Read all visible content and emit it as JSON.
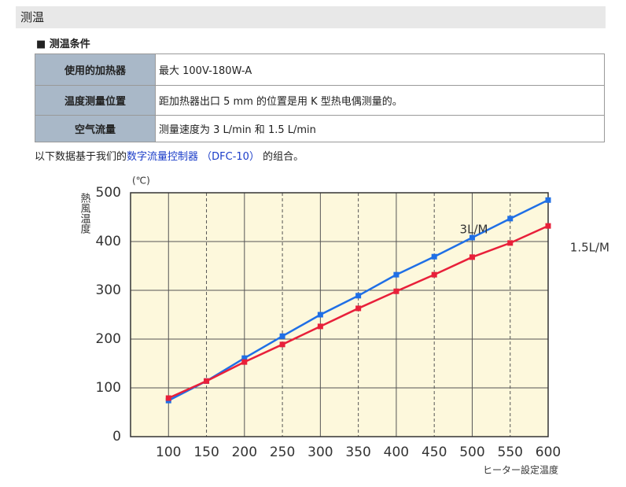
{
  "header": {
    "title": "测温"
  },
  "section": {
    "title": "■ 测温条件"
  },
  "table": {
    "rows": [
      [
        "使用的加热器",
        "最大 100V-180W-A"
      ],
      [
        "温度测量位置",
        "距加热器出口 5 mm 的位置是用 K 型热电偶测量的。"
      ],
      [
        "空气流量",
        "测量速度为 3 L/min 和 1.5 L/min"
      ]
    ]
  },
  "note": {
    "before": "以下数据基于我们的",
    "link": "数字流量控制器 （DFC-10）",
    "after": " 的组合。"
  },
  "chart_data": {
    "type": "line",
    "y_unit": "(℃)",
    "y_label": "熱風温度",
    "x_unit": "(℃)",
    "x_label": "ヒーター設定温度",
    "x": [
      100,
      150,
      200,
      250,
      300,
      350,
      400,
      450,
      500,
      550,
      600
    ],
    "series": [
      {
        "name": "3L/M",
        "color": "#1f6fe6",
        "values": [
          74,
          114,
          161,
          206,
          250,
          289,
          332,
          369,
          408,
          447,
          485
        ]
      },
      {
        "name": "1.5L/M",
        "color": "#e8203a",
        "values": [
          79,
          114,
          153,
          189,
          226,
          263,
          298,
          332,
          368,
          397,
          432
        ]
      }
    ],
    "xlim": [
      50,
      600
    ],
    "ylim": [
      0,
      500
    ],
    "xticks": [
      100,
      150,
      200,
      250,
      300,
      350,
      400,
      450,
      500,
      550,
      600
    ],
    "yticks": [
      0,
      100,
      200,
      300,
      400,
      500
    ],
    "grid": true
  }
}
